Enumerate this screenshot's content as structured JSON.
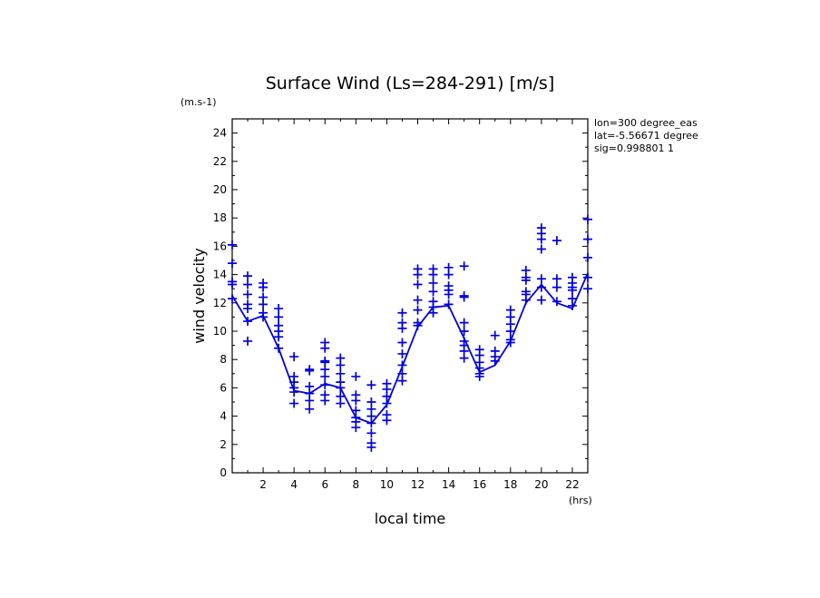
{
  "chart_data": {
    "type": "scatter",
    "title": "Surface Wind  (Ls=284-291) [m/s]",
    "xlabel": "local time",
    "ylabel": "wind velocity",
    "x_unit": "(hrs)",
    "y_unit": "(m.s-1)",
    "xlim": [
      0,
      23
    ],
    "ylim": [
      0,
      25
    ],
    "x_ticks": [
      2,
      4,
      6,
      8,
      10,
      12,
      14,
      16,
      18,
      20,
      22
    ],
    "y_ticks": [
      0,
      2,
      4,
      6,
      8,
      10,
      12,
      14,
      16,
      18,
      20,
      22,
      24
    ],
    "info_lines": [
      "lon=300 degree_eas",
      "lat=-5.56671 degree",
      "sig=0.998801 1"
    ],
    "series": [
      {
        "kind": "points",
        "points": [
          [
            0,
            16.1
          ],
          [
            0,
            14.8
          ],
          [
            0,
            13.5
          ],
          [
            0,
            13.3
          ],
          [
            0,
            12.3
          ],
          [
            1,
            13.9
          ],
          [
            1,
            13.3
          ],
          [
            1,
            12.6
          ],
          [
            1,
            11.9
          ],
          [
            1,
            11.6
          ],
          [
            1,
            10.7
          ],
          [
            1,
            9.3
          ],
          [
            2,
            13.4
          ],
          [
            2,
            13.1
          ],
          [
            2,
            12.4
          ],
          [
            2,
            11.9
          ],
          [
            2,
            11.3
          ],
          [
            2,
            11.0
          ],
          [
            3,
            11.6
          ],
          [
            3,
            11.0
          ],
          [
            3,
            10.4
          ],
          [
            3,
            10.0
          ],
          [
            3,
            9.6
          ],
          [
            3,
            8.8
          ],
          [
            4,
            8.2
          ],
          [
            4,
            6.8
          ],
          [
            4,
            6.4
          ],
          [
            4,
            6.0
          ],
          [
            4,
            5.7
          ],
          [
            4,
            4.9
          ],
          [
            5,
            7.3
          ],
          [
            5,
            7.2
          ],
          [
            5,
            6.1
          ],
          [
            5,
            5.6
          ],
          [
            5,
            5.1
          ],
          [
            5,
            4.5
          ],
          [
            6,
            9.2
          ],
          [
            6,
            8.8
          ],
          [
            6,
            7.9
          ],
          [
            6,
            7.8
          ],
          [
            6,
            7.3
          ],
          [
            6,
            6.8
          ],
          [
            6,
            6.2
          ],
          [
            6,
            5.5
          ],
          [
            6,
            5.1
          ],
          [
            7,
            8.1
          ],
          [
            7,
            7.6
          ],
          [
            7,
            7.0
          ],
          [
            7,
            6.4
          ],
          [
            7,
            6.0
          ],
          [
            7,
            5.4
          ],
          [
            7,
            4.9
          ],
          [
            8,
            6.8
          ],
          [
            8,
            5.5
          ],
          [
            8,
            5.1
          ],
          [
            8,
            4.4
          ],
          [
            8,
            3.9
          ],
          [
            8,
            3.6
          ],
          [
            8,
            3.2
          ],
          [
            9,
            6.2
          ],
          [
            9,
            5.0
          ],
          [
            9,
            4.5
          ],
          [
            9,
            4.0
          ],
          [
            9,
            3.5
          ],
          [
            9,
            2.8
          ],
          [
            9,
            2.1
          ],
          [
            9,
            1.8
          ],
          [
            10,
            6.3
          ],
          [
            10,
            5.9
          ],
          [
            10,
            5.4
          ],
          [
            10,
            4.9
          ],
          [
            10,
            4.1
          ],
          [
            10,
            3.7
          ],
          [
            11,
            11.3
          ],
          [
            11,
            10.6
          ],
          [
            11,
            10.2
          ],
          [
            11,
            9.2
          ],
          [
            11,
            8.4
          ],
          [
            11,
            7.6
          ],
          [
            11,
            7.0
          ],
          [
            11,
            6.5
          ],
          [
            12,
            14.4
          ],
          [
            12,
            14.0
          ],
          [
            12,
            13.3
          ],
          [
            12,
            12.2
          ],
          [
            12,
            11.5
          ],
          [
            12,
            10.6
          ],
          [
            12,
            10.4
          ],
          [
            13,
            14.4
          ],
          [
            13,
            14.0
          ],
          [
            13,
            13.4
          ],
          [
            13,
            12.8
          ],
          [
            13,
            12.1
          ],
          [
            13,
            11.7
          ],
          [
            13,
            11.3
          ],
          [
            14,
            14.5
          ],
          [
            14,
            14.0
          ],
          [
            14,
            13.2
          ],
          [
            14,
            12.9
          ],
          [
            14,
            12.6
          ],
          [
            14,
            11.9
          ],
          [
            15,
            14.6
          ],
          [
            15,
            12.5
          ],
          [
            15,
            12.4
          ],
          [
            15,
            10.6
          ],
          [
            15,
            10.0
          ],
          [
            15,
            9.3
          ],
          [
            15,
            9.0
          ],
          [
            15,
            8.6
          ],
          [
            15,
            8.1
          ],
          [
            16,
            8.7
          ],
          [
            16,
            8.3
          ],
          [
            16,
            7.8
          ],
          [
            16,
            7.4
          ],
          [
            16,
            7.0
          ],
          [
            16,
            6.8
          ],
          [
            17,
            9.7
          ],
          [
            17,
            8.6
          ],
          [
            17,
            8.2
          ],
          [
            17,
            7.9
          ],
          [
            18,
            11.5
          ],
          [
            18,
            11.0
          ],
          [
            18,
            10.5
          ],
          [
            18,
            10.0
          ],
          [
            18,
            9.4
          ],
          [
            18,
            9.2
          ],
          [
            19,
            14.3
          ],
          [
            19,
            13.8
          ],
          [
            19,
            13.6
          ],
          [
            19,
            12.8
          ],
          [
            19,
            12.6
          ],
          [
            19,
            12.2
          ],
          [
            20,
            17.3
          ],
          [
            20,
            16.9
          ],
          [
            20,
            16.5
          ],
          [
            20,
            15.8
          ],
          [
            20,
            13.7
          ],
          [
            20,
            13.1
          ],
          [
            20,
            12.2
          ],
          [
            21,
            16.4
          ],
          [
            21,
            13.7
          ],
          [
            21,
            13.1
          ],
          [
            21,
            12.1
          ],
          [
            22,
            13.8
          ],
          [
            22,
            13.4
          ],
          [
            22,
            13.1
          ],
          [
            22,
            12.9
          ],
          [
            22,
            12.3
          ],
          [
            22,
            11.8
          ],
          [
            23,
            17.9
          ],
          [
            23,
            16.5
          ],
          [
            23,
            15.2
          ],
          [
            23,
            13.8
          ],
          [
            23,
            13.0
          ]
        ]
      },
      {
        "kind": "line",
        "x": [
          0,
          1,
          2,
          3,
          4,
          5,
          6,
          7,
          8,
          9,
          10,
          11,
          12,
          13,
          14,
          15,
          16,
          17,
          18,
          19,
          20,
          21,
          22,
          23
        ],
        "y": [
          12.5,
          10.7,
          11.1,
          8.8,
          5.8,
          5.6,
          6.3,
          6.0,
          3.9,
          3.5,
          4.8,
          7.5,
          10.3,
          11.7,
          11.8,
          9.5,
          7.1,
          7.6,
          9.3,
          12.0,
          13.3,
          12.0,
          11.6,
          14.1
        ]
      }
    ],
    "colors": {
      "marks": "#0000dd",
      "axes": "#000000"
    }
  }
}
